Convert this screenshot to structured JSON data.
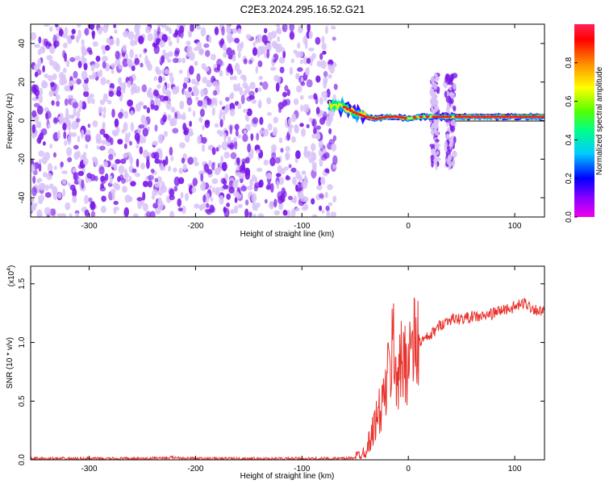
{
  "title": "C2E3.2024.295.16.52.G21",
  "colors": {
    "snr_line": "#e8332d",
    "scatter_purple": "#7a18e8",
    "scatter_light": "#d8c2f8",
    "colorbar_stops": [
      "#ee00ee",
      "#8800ff",
      "#0000ff",
      "#00ccff",
      "#00ff88",
      "#55ff00",
      "#ffff00",
      "#ff8800",
      "#ff0000",
      "#ff2255"
    ]
  },
  "chart_data": [
    {
      "type": "heatmap",
      "xlabel": "Height of straight line (km)",
      "ylabel": "Frequency (Hz)",
      "xlim": [
        -355,
        128
      ],
      "ylim": [
        -50,
        50
      ],
      "xticks": [
        -300,
        -200,
        -100,
        0,
        100
      ],
      "yticks": [
        -40,
        -20,
        0,
        20,
        40
      ],
      "colorbar": {
        "label": "Normalized spectral amplitude",
        "range": [
          0,
          1
        ],
        "ticks": [
          "0.0",
          "0.2",
          "0.4",
          "0.6",
          "0.8"
        ]
      },
      "ridge": [
        [
          -74,
          8
        ],
        [
          -60,
          7
        ],
        [
          -50,
          4
        ],
        [
          -40,
          2
        ],
        [
          -30,
          1
        ],
        [
          -20,
          2
        ],
        [
          -10,
          2
        ],
        [
          0,
          1
        ],
        [
          10,
          2
        ],
        [
          20,
          2
        ],
        [
          30,
          2
        ],
        [
          40,
          2
        ],
        [
          60,
          2
        ],
        [
          80,
          2
        ],
        [
          100,
          2
        ],
        [
          120,
          2
        ]
      ],
      "noise_band_x": [
        -355,
        -68
      ],
      "noise_clusters_x": [
        [
          22,
          28
        ],
        [
          35,
          44
        ]
      ]
    },
    {
      "type": "line",
      "xlabel": "Height of straight line (km)",
      "ylabel": "SNR (10 * v/v)",
      "yscale_label": "(x10",
      "yscale_exp": "4",
      "xlim": [
        -355,
        128
      ],
      "ylim": [
        0,
        1.65
      ],
      "xticks": [
        -300,
        -200,
        -100,
        0,
        100
      ],
      "yticks": [
        "0.0",
        "0.5",
        "1.0",
        "1.5"
      ],
      "series": [
        {
          "x": [
            -355,
            -300,
            -250,
            -220,
            -200,
            -150,
            -100,
            -60,
            -50,
            -40,
            -35,
            -30,
            -25,
            -20,
            -17,
            -14,
            -10,
            -5,
            0,
            5,
            10,
            20,
            30,
            40,
            50,
            60,
            70,
            80,
            90,
            100,
            105,
            110,
            115,
            120,
            128
          ],
          "y": [
            0.01,
            0.01,
            0.01,
            0.02,
            0.01,
            0.01,
            0.01,
            0.01,
            0.02,
            0.08,
            0.2,
            0.35,
            0.45,
            0.65,
            0.8,
            1.0,
            0.7,
            0.85,
            0.9,
            0.95,
            1.0,
            1.05,
            1.15,
            1.2,
            1.2,
            1.22,
            1.22,
            1.25,
            1.28,
            1.3,
            1.32,
            1.34,
            1.3,
            1.28,
            1.25
          ]
        }
      ]
    }
  ]
}
